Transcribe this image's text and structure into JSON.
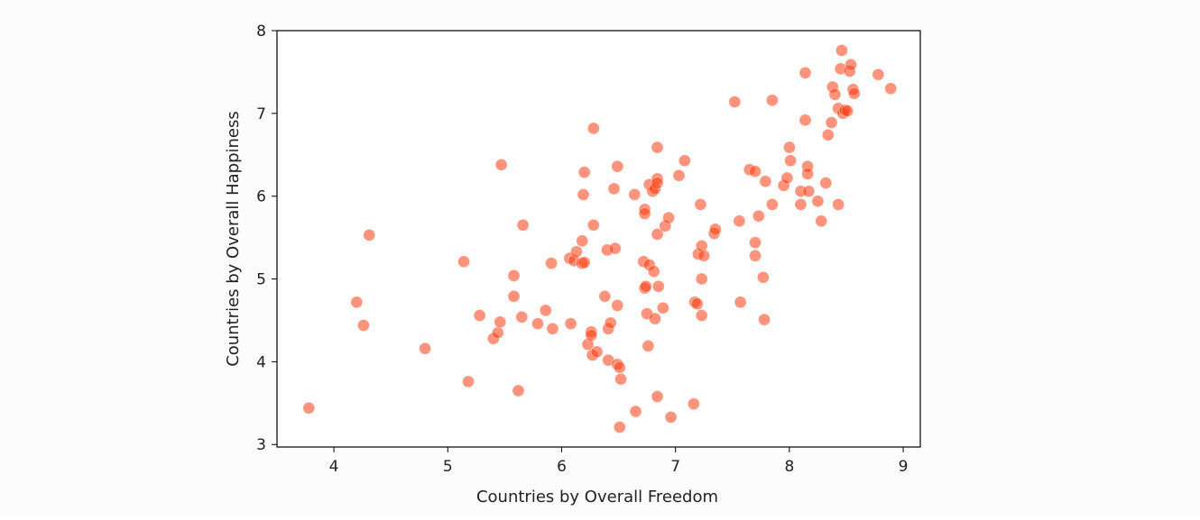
{
  "chart_data": {
    "type": "scatter",
    "title": "",
    "xlabel": "Countries by Overall Freedom",
    "ylabel": "Countries by Overall Happiness",
    "xlim": [
      3.5,
      9.15
    ],
    "ylim": [
      2.97,
      8.0
    ],
    "xticks": [
      "4",
      "5",
      "6",
      "7",
      "8",
      "9"
    ],
    "yticks": [
      "3",
      "4",
      "5",
      "6",
      "7",
      "8"
    ],
    "grid": false,
    "legend": "none",
    "marker_color": "#ff3b0f",
    "points": [
      [
        3.78,
        3.44
      ],
      [
        4.2,
        4.72
      ],
      [
        4.26,
        4.44
      ],
      [
        4.31,
        5.53
      ],
      [
        4.8,
        4.16
      ],
      [
        5.14,
        5.21
      ],
      [
        5.18,
        3.76
      ],
      [
        5.28,
        4.56
      ],
      [
        5.4,
        4.28
      ],
      [
        5.44,
        4.35
      ],
      [
        5.46,
        4.48
      ],
      [
        5.47,
        6.38
      ],
      [
        5.58,
        5.04
      ],
      [
        5.58,
        4.79
      ],
      [
        5.62,
        3.65
      ],
      [
        5.65,
        4.54
      ],
      [
        5.66,
        5.65
      ],
      [
        5.79,
        4.46
      ],
      [
        5.86,
        4.62
      ],
      [
        5.91,
        5.19
      ],
      [
        5.92,
        4.4
      ],
      [
        6.07,
        5.25
      ],
      [
        6.08,
        4.46
      ],
      [
        6.11,
        5.22
      ],
      [
        6.13,
        5.33
      ],
      [
        6.18,
        5.46
      ],
      [
        6.18,
        5.19
      ],
      [
        6.19,
        6.02
      ],
      [
        6.2,
        6.29
      ],
      [
        6.2,
        5.2
      ],
      [
        6.23,
        4.21
      ],
      [
        6.26,
        4.36
      ],
      [
        6.26,
        4.32
      ],
      [
        6.27,
        4.08
      ],
      [
        6.28,
        5.65
      ],
      [
        6.28,
        6.82
      ],
      [
        6.31,
        4.12
      ],
      [
        6.38,
        4.79
      ],
      [
        6.4,
        5.35
      ],
      [
        6.41,
        4.4
      ],
      [
        6.41,
        4.02
      ],
      [
        6.43,
        4.47
      ],
      [
        6.46,
        6.09
      ],
      [
        6.47,
        5.37
      ],
      [
        6.49,
        6.36
      ],
      [
        6.49,
        4.68
      ],
      [
        6.49,
        3.97
      ],
      [
        6.51,
        3.93
      ],
      [
        6.52,
        3.79
      ],
      [
        6.51,
        3.21
      ],
      [
        6.64,
        6.02
      ],
      [
        6.65,
        3.4
      ],
      [
        6.72,
        5.21
      ],
      [
        6.73,
        5.84
      ],
      [
        6.73,
        5.79
      ],
      [
        6.73,
        4.89
      ],
      [
        6.74,
        4.91
      ],
      [
        6.75,
        4.58
      ],
      [
        6.76,
        4.19
      ],
      [
        6.77,
        6.14
      ],
      [
        6.77,
        5.17
      ],
      [
        6.8,
        6.06
      ],
      [
        6.82,
        6.09
      ],
      [
        6.81,
        5.09
      ],
      [
        6.82,
        4.52
      ],
      [
        6.84,
        6.59
      ],
      [
        6.84,
        6.21
      ],
      [
        6.84,
        6.16
      ],
      [
        6.84,
        5.54
      ],
      [
        6.85,
        4.91
      ],
      [
        6.84,
        3.58
      ],
      [
        6.89,
        4.65
      ],
      [
        6.91,
        5.64
      ],
      [
        6.94,
        5.74
      ],
      [
        6.96,
        3.33
      ],
      [
        7.03,
        6.25
      ],
      [
        7.08,
        6.43
      ],
      [
        7.16,
        3.49
      ],
      [
        7.17,
        4.72
      ],
      [
        7.19,
        4.7
      ],
      [
        7.2,
        5.3
      ],
      [
        7.22,
        5.9
      ],
      [
        7.23,
        5.4
      ],
      [
        7.23,
        5.0
      ],
      [
        7.23,
        4.56
      ],
      [
        7.25,
        5.28
      ],
      [
        7.34,
        5.55
      ],
      [
        7.35,
        5.6
      ],
      [
        7.52,
        7.14
      ],
      [
        7.56,
        5.7
      ],
      [
        7.57,
        4.72
      ],
      [
        7.65,
        6.32
      ],
      [
        7.7,
        6.3
      ],
      [
        7.7,
        5.44
      ],
      [
        7.7,
        5.28
      ],
      [
        7.73,
        5.76
      ],
      [
        7.77,
        5.02
      ],
      [
        7.78,
        4.51
      ],
      [
        7.79,
        6.18
      ],
      [
        7.85,
        7.16
      ],
      [
        7.85,
        5.9
      ],
      [
        7.95,
        6.13
      ],
      [
        7.98,
        6.22
      ],
      [
        8.0,
        6.59
      ],
      [
        8.01,
        6.43
      ],
      [
        8.1,
        6.06
      ],
      [
        8.1,
        5.9
      ],
      [
        8.14,
        7.49
      ],
      [
        8.14,
        6.92
      ],
      [
        8.16,
        6.36
      ],
      [
        8.16,
        6.27
      ],
      [
        8.17,
        6.06
      ],
      [
        8.25,
        5.94
      ],
      [
        8.28,
        5.7
      ],
      [
        8.32,
        6.16
      ],
      [
        8.34,
        6.74
      ],
      [
        8.37,
        6.89
      ],
      [
        8.38,
        7.32
      ],
      [
        8.4,
        7.23
      ],
      [
        8.43,
        7.06
      ],
      [
        8.43,
        5.9
      ],
      [
        8.45,
        7.54
      ],
      [
        8.46,
        7.76
      ],
      [
        8.47,
        7.0
      ],
      [
        8.49,
        7.04
      ],
      [
        8.51,
        7.03
      ],
      [
        8.53,
        7.51
      ],
      [
        8.54,
        7.59
      ],
      [
        8.56,
        7.29
      ],
      [
        8.57,
        7.24
      ],
      [
        8.78,
        7.47
      ],
      [
        8.89,
        7.3
      ]
    ]
  }
}
